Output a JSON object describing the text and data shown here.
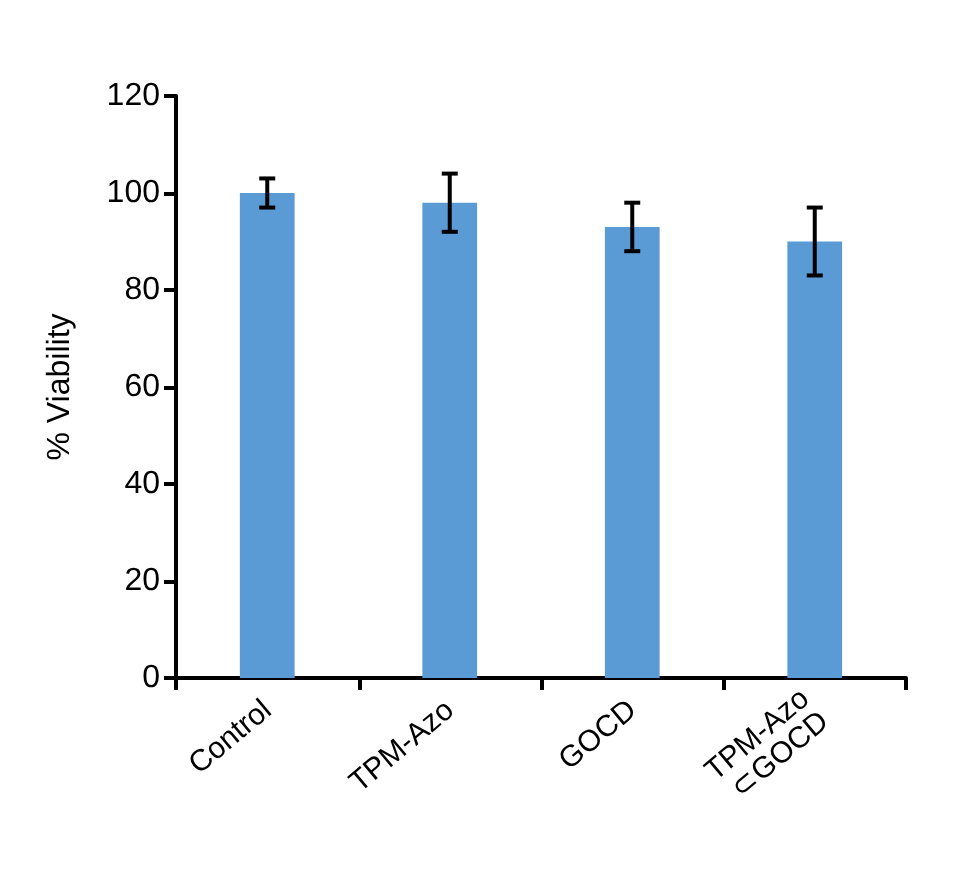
{
  "chart_data": {
    "type": "bar",
    "ylabel": "% Viability",
    "categories": [
      "Control",
      "TPM-Azo",
      "GOCD",
      "TPM-Azo\n⊂GOCD"
    ],
    "values": [
      100,
      98,
      93,
      90
    ],
    "errors": [
      3,
      6,
      5,
      7
    ],
    "color": "#5b9bd5",
    "ylim": [
      0,
      120
    ],
    "yticks": [
      0,
      20,
      40,
      60,
      80,
      100,
      120
    ],
    "grid": false
  }
}
